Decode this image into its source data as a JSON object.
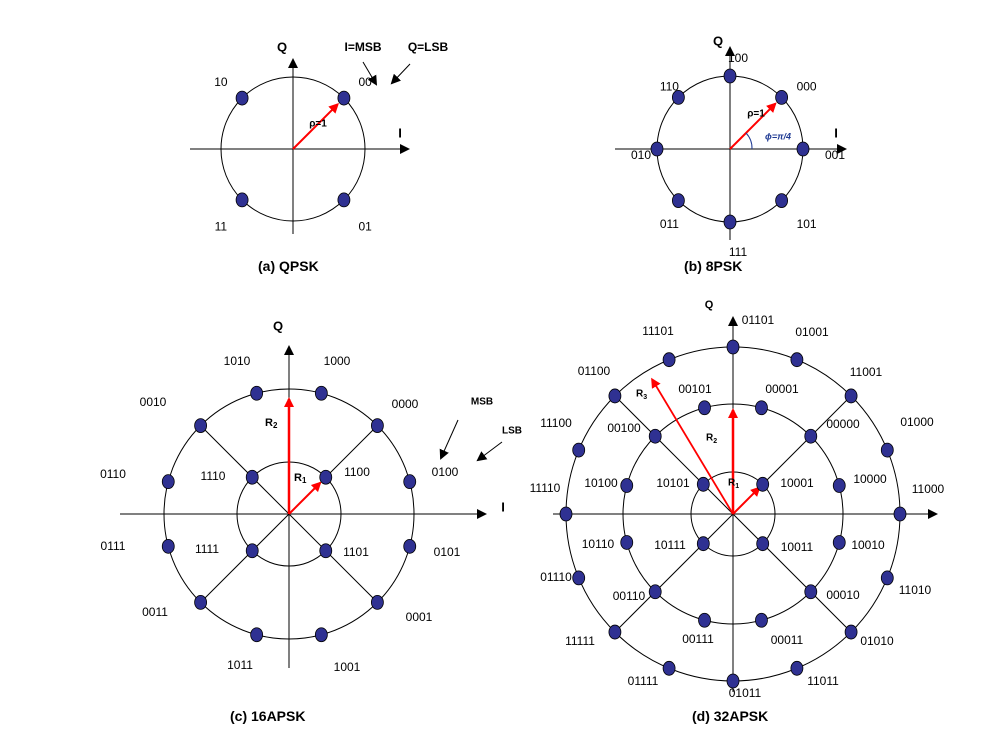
{
  "colors": {
    "point": "#2f3192",
    "vector": "#ff0000",
    "line": "#000000",
    "phi_text": "#1f3a93"
  },
  "diagrams": [
    {
      "id": "qpsk",
      "caption": "(a) QPSK",
      "axis_labels": {
        "i": "I",
        "q": "Q"
      },
      "radius_labels": [
        {
          "text": "ρ=1",
          "angle_deg": 45
        }
      ],
      "points": [
        {
          "label": "00",
          "angle_deg": 45
        },
        {
          "label": "10",
          "angle_deg": 135
        },
        {
          "label": "11",
          "angle_deg": 225
        },
        {
          "label": "01",
          "angle_deg": 315
        }
      ],
      "annotations": [
        {
          "text": "I=MSB"
        },
        {
          "text": "Q=LSB"
        }
      ]
    },
    {
      "id": "8psk",
      "caption": "(b) 8PSK",
      "axis_labels": {
        "i": "I",
        "q": "Q"
      },
      "radius_labels": [
        {
          "text": "ρ=1",
          "angle_deg": 45
        }
      ],
      "angle_label": "ϕ=π/4",
      "points": [
        {
          "label": "001",
          "angle_deg": 0
        },
        {
          "label": "000",
          "angle_deg": 45
        },
        {
          "label": "100",
          "angle_deg": 90
        },
        {
          "label": "110",
          "angle_deg": 135
        },
        {
          "label": "010",
          "angle_deg": 180
        },
        {
          "label": "011",
          "angle_deg": 225
        },
        {
          "label": "111",
          "angle_deg": 270
        },
        {
          "label": "101",
          "angle_deg": 315
        }
      ]
    },
    {
      "id": "16apsk",
      "caption": "(c) 16APSK",
      "axis_labels": {
        "i": "I",
        "q": "Q"
      },
      "radius_labels": [
        {
          "text": "R",
          "sub": "1"
        },
        {
          "text": "R",
          "sub": "2"
        }
      ],
      "annotations": [
        {
          "text": "MSB"
        },
        {
          "text": "LSB"
        }
      ],
      "points": [
        {
          "label": "1100",
          "ring": 1,
          "angle_deg": 45
        },
        {
          "label": "1110",
          "ring": 1,
          "angle_deg": 135
        },
        {
          "label": "1111",
          "ring": 1,
          "angle_deg": 225
        },
        {
          "label": "1101",
          "ring": 1,
          "angle_deg": 315
        },
        {
          "label": "0100",
          "ring": 2,
          "angle_deg": 15
        },
        {
          "label": "0000",
          "ring": 2,
          "angle_deg": 45
        },
        {
          "label": "1000",
          "ring": 2,
          "angle_deg": 75
        },
        {
          "label": "1010",
          "ring": 2,
          "angle_deg": 105
        },
        {
          "label": "0010",
          "ring": 2,
          "angle_deg": 135
        },
        {
          "label": "0110",
          "ring": 2,
          "angle_deg": 165
        },
        {
          "label": "0111",
          "ring": 2,
          "angle_deg": 195
        },
        {
          "label": "0011",
          "ring": 2,
          "angle_deg": 225
        },
        {
          "label": "1011",
          "ring": 2,
          "angle_deg": 255
        },
        {
          "label": "1001",
          "ring": 2,
          "angle_deg": 285
        },
        {
          "label": "0001",
          "ring": 2,
          "angle_deg": 315
        },
        {
          "label": "0101",
          "ring": 2,
          "angle_deg": 345
        }
      ]
    },
    {
      "id": "32apsk",
      "caption": "(d) 32APSK",
      "axis_labels": {
        "q": "Q"
      },
      "radius_labels": [
        {
          "text": "R",
          "sub": "1"
        },
        {
          "text": "R",
          "sub": "2"
        },
        {
          "text": "R",
          "sub": "3"
        }
      ],
      "points": [
        {
          "label": "10001",
          "ring": 1,
          "angle_deg": 45
        },
        {
          "label": "10101",
          "ring": 1,
          "angle_deg": 135
        },
        {
          "label": "10111",
          "ring": 1,
          "angle_deg": 225
        },
        {
          "label": "10011",
          "ring": 1,
          "angle_deg": 315
        },
        {
          "label": "10000",
          "ring": 2,
          "angle_deg": 15
        },
        {
          "label": "00000",
          "ring": 2,
          "angle_deg": 45
        },
        {
          "label": "00001",
          "ring": 2,
          "angle_deg": 75
        },
        {
          "label": "00101",
          "ring": 2,
          "angle_deg": 105
        },
        {
          "label": "00100",
          "ring": 2,
          "angle_deg": 135
        },
        {
          "label": "10100",
          "ring": 2,
          "angle_deg": 165
        },
        {
          "label": "10110",
          "ring": 2,
          "angle_deg": 195
        },
        {
          "label": "00110",
          "ring": 2,
          "angle_deg": 225
        },
        {
          "label": "00111",
          "ring": 2,
          "angle_deg": 255
        },
        {
          "label": "00011",
          "ring": 2,
          "angle_deg": 285
        },
        {
          "label": "00010",
          "ring": 2,
          "angle_deg": 315
        },
        {
          "label": "10010",
          "ring": 2,
          "angle_deg": 345
        },
        {
          "label": "11000",
          "ring": 3,
          "angle_deg": 0
        },
        {
          "label": "01000",
          "ring": 3,
          "angle_deg": 22.5
        },
        {
          "label": "11001",
          "ring": 3,
          "angle_deg": 45
        },
        {
          "label": "01001",
          "ring": 3,
          "angle_deg": 67.5
        },
        {
          "label": "01101",
          "ring": 3,
          "angle_deg": 90
        },
        {
          "label": "11101",
          "ring": 3,
          "angle_deg": 112.5
        },
        {
          "label": "01100",
          "ring": 3,
          "angle_deg": 135
        },
        {
          "label": "11100",
          "ring": 3,
          "angle_deg": 157.5
        },
        {
          "label": "11110",
          "ring": 3,
          "angle_deg": 180
        },
        {
          "label": "01110",
          "ring": 3,
          "angle_deg": 202.5
        },
        {
          "label": "11111",
          "ring": 3,
          "angle_deg": 225
        },
        {
          "label": "01111",
          "ring": 3,
          "angle_deg": 247.5
        },
        {
          "label": "01011",
          "ring": 3,
          "angle_deg": 270
        },
        {
          "label": "11011",
          "ring": 3,
          "angle_deg": 292.5
        },
        {
          "label": "01010",
          "ring": 3,
          "angle_deg": 315
        },
        {
          "label": "11010",
          "ring": 3,
          "angle_deg": 337.5
        }
      ]
    }
  ]
}
